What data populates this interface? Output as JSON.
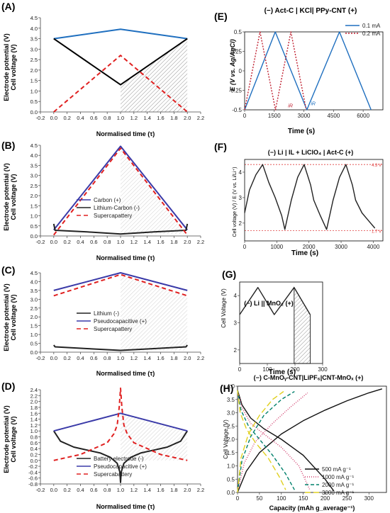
{
  "chart_data": [
    {
      "id": "A",
      "panel_label": "(A)",
      "type": "line",
      "ylabel": [
        "Electrode potential (V)",
        "Cell voltage (V)"
      ],
      "xlabel": "Normalised time (τ)",
      "xlim": [
        -0.2,
        2.2
      ],
      "ylim": [
        0,
        4.5
      ],
      "xticks": [
        "-0.2",
        "0.0",
        "0.2",
        "0.4",
        "0.6",
        "0.8",
        "1.0",
        "1.2",
        "1.4",
        "1.6",
        "1.8",
        "2.0",
        "2.2"
      ],
      "yticks": [
        "0.0",
        "0.5",
        "1.0",
        "1.5",
        "2.0",
        "2.5",
        "3.0",
        "3.5",
        "4.0",
        "4.5"
      ],
      "shade_x": [
        1.0,
        2.0
      ],
      "series": [
        {
          "color": "#1f6fbf",
          "dash": "",
          "x": [
            0,
            1,
            2
          ],
          "y": [
            3.5,
            3.95,
            3.5
          ]
        },
        {
          "color": "#000000",
          "dash": "",
          "x": [
            0,
            1,
            2
          ],
          "y": [
            3.5,
            1.3,
            3.5
          ]
        },
        {
          "color": "#e02020",
          "dash": "6,4",
          "x": [
            0,
            1,
            2
          ],
          "y": [
            0,
            2.7,
            0
          ]
        }
      ]
    },
    {
      "id": "B",
      "panel_label": "(B)",
      "type": "line",
      "ylabel": [
        "Electrode potential (V)",
        "Cell voltage (V)"
      ],
      "xlabel": "Normalised time (τ)",
      "xlim": [
        -0.2,
        2.2
      ],
      "ylim": [
        0,
        4.5
      ],
      "xticks": [
        "-0.2",
        "0.0",
        "0.2",
        "0.4",
        "0.6",
        "0.8",
        "1.0",
        "1.2",
        "1.4",
        "1.6",
        "1.8",
        "2.0",
        "2.2"
      ],
      "yticks": [
        "0.0",
        "0.5",
        "1.0",
        "1.5",
        "2.0",
        "2.5",
        "3.0",
        "3.5",
        "4.0",
        "4.5"
      ],
      "shade_x": [
        1.0,
        2.0
      ],
      "legend": [
        "Carbon (+)",
        "Lithium-Carbon (-)",
        "Supercapattery"
      ],
      "series": [
        {
          "name": "Carbon (+)",
          "color": "#3a3aa8",
          "dash": "",
          "x": [
            0,
            1,
            2
          ],
          "y": [
            0.3,
            4.45,
            0.3
          ]
        },
        {
          "name": "Lithium-Carbon (-)",
          "color": "#222222",
          "dash": "",
          "x": [
            0,
            0.02,
            0.5,
            1,
            1.5,
            1.98,
            2
          ],
          "y": [
            0.6,
            0.28,
            0.2,
            0.1,
            0.2,
            0.28,
            0.6
          ]
        },
        {
          "name": "Supercapattery",
          "color": "#e02020",
          "dash": "6,4",
          "x": [
            0,
            1,
            2
          ],
          "y": [
            0.05,
            4.35,
            0.05
          ]
        }
      ]
    },
    {
      "id": "C",
      "panel_label": "(C)",
      "type": "line",
      "ylabel": [
        "Electrode potential (V)",
        "Cell voltage (V)"
      ],
      "xlabel": "Normalised time (τ)",
      "xlim": [
        -0.2,
        2.2
      ],
      "ylim": [
        0,
        4.5
      ],
      "xticks": [
        "-0.2",
        "0.0",
        "0.2",
        "0.4",
        "0.6",
        "0.8",
        "1.0",
        "1.2",
        "1.4",
        "1.6",
        "1.8",
        "2.0",
        "2.2"
      ],
      "yticks": [
        "0.0",
        "0.5",
        "1.0",
        "1.5",
        "2.0",
        "2.5",
        "3.0",
        "3.5",
        "4.0",
        "4.5"
      ],
      "shade_x": [
        1.0,
        2.0
      ],
      "legend": [
        "Lithium (-)",
        "Pseudocapacitive (+)",
        "Supercapattery"
      ],
      "series": [
        {
          "name": "Lithium (-)",
          "color": "#222222",
          "dash": "",
          "x": [
            0,
            0.02,
            0.5,
            1,
            1.5,
            1.98,
            2
          ],
          "y": [
            0.4,
            0.3,
            0.2,
            0.1,
            0.2,
            0.3,
            0.4
          ]
        },
        {
          "name": "Pseudocapacitive (+)",
          "color": "#3a3aa8",
          "dash": "",
          "x": [
            0,
            1,
            2
          ],
          "y": [
            3.5,
            4.5,
            3.5
          ]
        },
        {
          "name": "Supercapattery",
          "color": "#e02020",
          "dash": "6,4",
          "x": [
            0,
            1,
            2
          ],
          "y": [
            3.2,
            4.4,
            3.2
          ]
        }
      ]
    },
    {
      "id": "D",
      "panel_label": "(D)",
      "type": "line",
      "ylabel": [
        "Electrode potential (V)",
        "Cell voltage (V)"
      ],
      "xlabel": "Normalised time (τ)",
      "xlim": [
        -0.2,
        2.2
      ],
      "ylim": [
        -0.8,
        2.4
      ],
      "xticks": [
        "-0.2",
        "0.0",
        "0.2",
        "0.4",
        "0.6",
        "0.8",
        "1.0",
        "1.2",
        "1.4",
        "1.6",
        "1.8",
        "2.0",
        "2.2"
      ],
      "yticks": [
        "-0.8",
        "-0.6",
        "-0.4",
        "-0.2",
        "0.0",
        "0.2",
        "0.4",
        "0.6",
        "0.8",
        "1.0",
        "1.2",
        "1.4",
        "1.6",
        "1.8",
        "2.0",
        "2.2",
        "2.4"
      ],
      "shade_x": [
        1.0,
        2.0
      ],
      "legend": [
        "Battery electrode (-)",
        "Pseudocapacitive (+)",
        "Supercabattery"
      ],
      "series": [
        {
          "name": "Battery electrode (-)",
          "color": "#222222",
          "dash": "",
          "x": [
            0,
            0.1,
            0.3,
            0.5,
            0.7,
            0.85,
            0.95,
            0.99,
            1,
            1.01,
            1.05,
            1.15,
            1.3,
            1.5,
            1.7,
            1.9,
            2
          ],
          "y": [
            1.0,
            0.65,
            0.45,
            0.35,
            0.25,
            0.1,
            -0.1,
            -0.4,
            -0.75,
            -0.4,
            -0.1,
            0.1,
            0.25,
            0.35,
            0.45,
            0.65,
            1.0
          ]
        },
        {
          "name": "Pseudocapacitive (+)",
          "color": "#3a3aa8",
          "dash": "",
          "x": [
            0,
            1,
            2
          ],
          "y": [
            1.0,
            1.6,
            1.0
          ]
        },
        {
          "name": "Supercabattery",
          "color": "#e02020",
          "dash": "6,4",
          "x": [
            0,
            0.2,
            0.4,
            0.6,
            0.8,
            0.9,
            0.95,
            0.98,
            1,
            1.02,
            1.05,
            1.1,
            1.2,
            1.4,
            1.6,
            1.8,
            2
          ],
          "y": [
            0,
            0.1,
            0.2,
            0.4,
            0.6,
            0.9,
            1.2,
            1.8,
            2.45,
            1.8,
            1.2,
            0.9,
            0.6,
            0.4,
            0.2,
            0.1,
            0
          ]
        }
      ]
    },
    {
      "id": "E",
      "panel_label": "(E)",
      "type": "line",
      "title": "(−) Act-C | KCl| PPy-CNT (+)",
      "ylabel": [
        "E (V vs. Ag/AgCl)"
      ],
      "xlabel": "Time (s)",
      "xlim": [
        0,
        7000
      ],
      "ylim": [
        -0.5,
        0.5
      ],
      "xticks": [
        "0",
        "1500",
        "3000",
        "4500",
        "6000"
      ],
      "yticks": [
        "-0.5",
        "-0.25",
        "0",
        "0.25",
        "0.5"
      ],
      "legend": [
        "0.1 mA",
        "0.2 mA"
      ],
      "annotations": [
        "iR",
        "iR"
      ],
      "series": [
        {
          "name": "0.1 mA",
          "color": "#1f6fbf",
          "dash": "",
          "x": [
            0,
            1550,
            3150,
            3200,
            4800,
            6400
          ],
          "y": [
            -0.5,
            0.5,
            -0.5,
            -0.47,
            0.5,
            -0.5
          ]
        },
        {
          "name": "0.2 mA",
          "color": "#c02030",
          "dash": "2,2",
          "x": [
            0,
            780,
            1560,
            2340,
            3120
          ],
          "y": [
            -0.5,
            0.5,
            -0.5,
            0.5,
            -0.5
          ]
        }
      ]
    },
    {
      "id": "F",
      "panel_label": "(F)",
      "type": "line",
      "title": "(−) Li | IL + LiClO₄ | Act-C (+)",
      "ylabel": [
        "Cell voltage (V) / E (V vs. Li/Li⁺)"
      ],
      "xlabel": "Time (s)",
      "xlim": [
        0,
        4300
      ],
      "ylim": [
        1.3,
        4.5
      ],
      "xticks": [
        "0",
        "1000",
        "2000",
        "3000",
        "4000"
      ],
      "yticks": [
        "2",
        "3",
        "4"
      ],
      "ref_lines": [
        {
          "y": 4.3,
          "label": "4.3 V"
        },
        {
          "y": 1.7,
          "label": "1.7 V"
        }
      ],
      "series": [
        {
          "color": "#222222",
          "dash": "",
          "x": [
            0,
            150,
            350,
            560,
            750,
            950,
            1150,
            1250,
            1450,
            1650,
            1850,
            2050,
            2150,
            2350,
            2550,
            2750,
            2950,
            3150,
            3350,
            3450,
            3650,
            3850,
            4050
          ],
          "y": [
            2.4,
            3.3,
            3.9,
            4.3,
            3.6,
            3.0,
            2.3,
            1.75,
            2.9,
            3.8,
            4.3,
            3.5,
            2.9,
            2.3,
            1.75,
            2.9,
            3.8,
            4.3,
            3.5,
            2.9,
            2.4,
            2.1,
            1.8
          ]
        }
      ]
    },
    {
      "id": "G",
      "panel_label": "(G)",
      "type": "line",
      "title": "(−) Li || MnO₂ (+)",
      "ylabel": [
        "Cell Voltage (V)"
      ],
      "xlabel": "Time (s)",
      "xlim": [
        0,
        300
      ],
      "ylim": [
        1.5,
        4.5
      ],
      "xticks": [
        "0",
        "100",
        "200",
        "300"
      ],
      "yticks": [
        "2",
        "3",
        "4"
      ],
      "shade_x": [
        197,
        255
      ],
      "series": [
        {
          "color": "#222222",
          "dash": "",
          "x": [
            0,
            66,
            125,
            197,
            255
          ],
          "y": [
            3.3,
            4.3,
            3.3,
            4.3,
            3.3
          ]
        }
      ]
    },
    {
      "id": "H",
      "panel_label": "(H)",
      "type": "line",
      "title": "(−) C-MnOᵧ-CNT|LiPF₆|CNT-MnOₓ (+)",
      "ylabel": [
        "Cell Voltage (V)"
      ],
      "xlabel": "Capacity (mAh g_average⁻¹)",
      "xlim": [
        0,
        340
      ],
      "ylim": [
        0,
        4.0
      ],
      "xticks": [
        "0",
        "50",
        "100",
        "150",
        "200",
        "250",
        "300"
      ],
      "yticks": [
        "0.0",
        "0.5",
        "1.0",
        "1.5",
        "2.0",
        "2.5",
        "3.0",
        "3.5",
        "4.0"
      ],
      "legend": [
        "500 mA g⁻¹",
        "1000 mA g⁻¹",
        "2000 mA g⁻¹",
        "3000 mA g⁻¹"
      ],
      "series": [
        {
          "name": "500 mA g⁻¹",
          "color": "#111111",
          "dash": "",
          "x": [
            0,
            20,
            50,
            100,
            150,
            200,
            250,
            300,
            330
          ],
          "y": [
            0,
            0.8,
            1.5,
            2.2,
            2.7,
            3.1,
            3.45,
            3.75,
            3.9
          ]
        },
        {
          "name": "500 mA g⁻¹ discharge",
          "color": "#111111",
          "dash": "",
          "x": [
            0,
            10,
            30,
            60,
            100,
            150,
            200,
            220
          ],
          "y": [
            3.85,
            3.3,
            2.8,
            2.4,
            2.0,
            1.4,
            0.5,
            0.05
          ]
        },
        {
          "name": "1000 mA g⁻¹",
          "color": "#d03a6a",
          "dash": "1,2",
          "x": [
            0,
            15,
            40,
            80,
            120,
            160
          ],
          "y": [
            0,
            1.1,
            1.9,
            2.6,
            3.2,
            3.75
          ]
        },
        {
          "name": "1000 mA g⁻¹ discharge",
          "color": "#d03a6a",
          "dash": "1,2",
          "x": [
            0,
            10,
            30,
            60,
            100,
            140,
            165
          ],
          "y": [
            3.85,
            3.2,
            2.6,
            2.2,
            1.7,
            1.0,
            0.1
          ]
        },
        {
          "name": "2000 mA g⁻¹",
          "color": "#00806b",
          "dash": "5,3",
          "x": [
            0,
            10,
            30,
            60,
            100,
            130
          ],
          "y": [
            0,
            1.2,
            2.1,
            2.9,
            3.5,
            3.8
          ]
        },
        {
          "name": "2000 mA g⁻¹ discharge",
          "color": "#00806b",
          "dash": "5,3",
          "x": [
            0,
            8,
            25,
            50,
            80,
            110,
            130
          ],
          "y": [
            3.85,
            3.1,
            2.5,
            2.0,
            1.4,
            0.7,
            0.1
          ]
        },
        {
          "name": "3000 mA g⁻¹",
          "color": "#e0d020",
          "dash": "8,4",
          "x": [
            0,
            8,
            25,
            50,
            80,
            105
          ],
          "y": [
            0,
            1.3,
            2.2,
            2.9,
            3.5,
            3.8
          ]
        },
        {
          "name": "3000 mA g⁻¹ discharge",
          "color": "#e0d020",
          "dash": "8,4",
          "x": [
            0,
            6,
            20,
            40,
            70,
            95,
            110
          ],
          "y": [
            3.85,
            3.0,
            2.4,
            1.9,
            1.3,
            0.6,
            0.1
          ]
        }
      ]
    }
  ]
}
